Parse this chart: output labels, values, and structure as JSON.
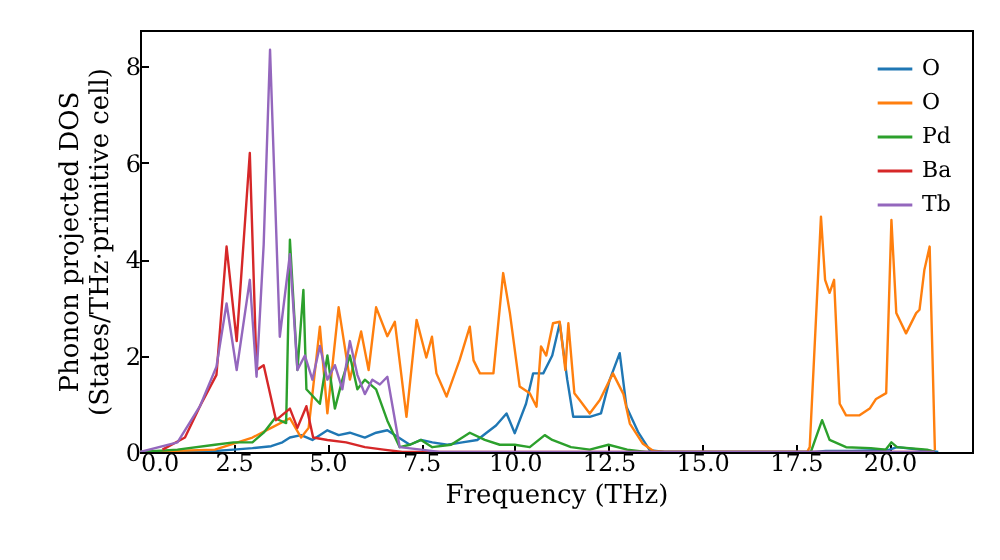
{
  "chart_data": {
    "type": "line",
    "xlabel": "Frequency (THz)",
    "ylabel": "Phonon projected DOS\n(States/THz·primitive cell)",
    "xlim": [
      0,
      22.2
    ],
    "ylim": [
      0,
      8.75
    ],
    "xticks": [
      {
        "value": 0,
        "label": "0.0"
      },
      {
        "value": 2.5,
        "label": "2.5"
      },
      {
        "value": 5,
        "label": "5.0"
      },
      {
        "value": 7.5,
        "label": "7.5"
      },
      {
        "value": 10,
        "label": "10.0"
      },
      {
        "value": 12.5,
        "label": "12.5"
      },
      {
        "value": 15,
        "label": "15.0"
      },
      {
        "value": 17.5,
        "label": "17.5"
      },
      {
        "value": 20,
        "label": "20.0"
      }
    ],
    "yticks": [
      0,
      2,
      4,
      6,
      8
    ],
    "legend": "top right",
    "marker": "none",
    "line_style": "solid",
    "series": [
      {
        "name": "O",
        "color": "#1f77b4",
        "x": [
          0,
          1,
          2,
          2.5,
          3,
          3.5,
          3.8,
          4.0,
          4.3,
          4.6,
          5.0,
          5.3,
          5.6,
          6.0,
          6.3,
          6.6,
          6.9,
          7.2,
          7.5,
          7.8,
          8.2,
          8.6,
          9.0,
          9.23,
          9.5,
          9.78,
          10.0,
          10.3,
          10.49,
          10.76,
          11.0,
          11.2,
          11.4,
          11.56,
          12.0,
          12.3,
          12.53,
          12.8,
          12.98,
          13.3,
          13.6,
          14,
          18,
          18.3,
          19,
          20,
          20.2,
          21,
          21.3
        ],
        "values": [
          0,
          0,
          0.02,
          0.05,
          0.08,
          0.12,
          0.2,
          0.3,
          0.35,
          0.25,
          0.45,
          0.35,
          0.4,
          0.3,
          0.4,
          0.45,
          0.3,
          0.15,
          0.25,
          0.2,
          0.15,
          0.2,
          0.25,
          0.39,
          0.55,
          0.8,
          0.39,
          1.0,
          1.63,
          1.63,
          2.0,
          2.67,
          1.5,
          0.73,
          0.73,
          0.8,
          1.49,
          2.05,
          0.94,
          0.4,
          0.04,
          0,
          0,
          0.02,
          0.02,
          0.05,
          0.1,
          0.03,
          0
        ]
      },
      {
        "name": "O",
        "color": "#ff7f0e",
        "x": [
          0,
          2,
          3,
          3.5,
          4.0,
          4.3,
          4.5,
          4.8,
          5.0,
          5.3,
          5.6,
          5.9,
          6.1,
          6.3,
          6.6,
          6.8,
          7.11,
          7.38,
          7.64,
          7.79,
          7.91,
          8.18,
          8.53,
          8.8,
          8.9,
          9.07,
          9.43,
          9.69,
          9.87,
          10.13,
          10.4,
          10.58,
          10.7,
          10.84,
          11.02,
          11.2,
          11.35,
          11.43,
          11.59,
          11.73,
          12.0,
          12.27,
          12.62,
          12.9,
          13.07,
          13.42,
          13.7,
          14,
          17.8,
          17.87,
          18.17,
          18.28,
          18.4,
          18.52,
          18.67,
          18.84,
          19.2,
          19.47,
          19.64,
          19.91,
          20.05,
          20.18,
          20.44,
          20.71,
          20.8,
          20.93,
          21.07,
          21.21
        ],
        "values": [
          0,
          0.05,
          0.3,
          0.5,
          0.7,
          0.3,
          0.5,
          2.6,
          0.8,
          3.0,
          1.5,
          2.5,
          1.7,
          3.0,
          2.4,
          2.7,
          0.73,
          2.74,
          1.96,
          2.39,
          1.63,
          1.15,
          1.91,
          2.6,
          1.9,
          1.63,
          1.63,
          3.71,
          2.88,
          1.36,
          1.22,
          0.94,
          2.19,
          2.0,
          2.67,
          2.7,
          1.7,
          2.67,
          1.22,
          1.08,
          0.8,
          1.08,
          1.63,
          1.2,
          0.59,
          0.17,
          0.02,
          0,
          0,
          0.1,
          4.88,
          3.57,
          3.3,
          3.57,
          1.0,
          0.76,
          0.76,
          0.9,
          1.1,
          1.22,
          4.81,
          2.88,
          2.46,
          2.88,
          2.95,
          3.78,
          4.26,
          0.04
        ]
      },
      {
        "name": "Pd",
        "color": "#2ca02c",
        "x": [
          0,
          1,
          2,
          2.5,
          3,
          3.3,
          3.6,
          3.9,
          4.0,
          4.2,
          4.36,
          4.44,
          4.8,
          5.0,
          5.2,
          5.4,
          5.6,
          5.8,
          6.0,
          6.3,
          6.6,
          6.93,
          7.2,
          7.5,
          7.8,
          8.3,
          8.8,
          9.2,
          9.6,
          10.0,
          10.4,
          10.8,
          11.0,
          11.5,
          12.0,
          12.5,
          13.0,
          13.5,
          17.9,
          18.2,
          18.4,
          18.84,
          19.5,
          19.9,
          20.05,
          20.2,
          21.0,
          21.2
        ],
        "values": [
          0,
          0.05,
          0.15,
          0.2,
          0.2,
          0.4,
          0.7,
          0.6,
          4.4,
          1.7,
          3.36,
          1.3,
          1.0,
          2.0,
          0.9,
          1.5,
          2.0,
          1.3,
          1.5,
          1.3,
          0.65,
          0.1,
          0.15,
          0.25,
          0.1,
          0.15,
          0.4,
          0.25,
          0.15,
          0.15,
          0.1,
          0.35,
          0.25,
          0.1,
          0.05,
          0.15,
          0.05,
          0,
          0,
          0.66,
          0.25,
          0.1,
          0.08,
          0.05,
          0.2,
          0.1,
          0.05,
          0
        ]
      },
      {
        "name": "Ba",
        "color": "#d62728",
        "x": [
          0.6,
          1.2,
          1.6,
          2.04,
          2.31,
          2.58,
          2.93,
          3.11,
          3.3,
          3.63,
          4.0,
          4.2,
          4.44,
          4.62,
          5.0,
          5.5,
          6.0,
          6.5,
          7,
          8,
          12,
          21.2
        ],
        "values": [
          0.05,
          0.3,
          0.95,
          1.6,
          4.26,
          2.3,
          6.2,
          1.7,
          1.8,
          0.66,
          0.9,
          0.5,
          0.95,
          0.3,
          0.25,
          0.2,
          0.1,
          0.05,
          0,
          0,
          0,
          0
        ]
      },
      {
        "name": "Tb",
        "color": "#9467bd",
        "x": [
          0,
          1,
          1.6,
          2.04,
          2.31,
          2.58,
          2.93,
          3.11,
          3.3,
          3.47,
          3.73,
          4.0,
          4.2,
          4.4,
          4.6,
          4.8,
          5.0,
          5.2,
          5.4,
          5.6,
          5.8,
          6.0,
          6.2,
          6.4,
          6.6,
          6.93,
          7.5,
          8,
          12,
          21.2
        ],
        "values": [
          0,
          0.2,
          0.95,
          1.77,
          3.08,
          1.7,
          3.57,
          1.56,
          4.3,
          8.34,
          2.39,
          4.1,
          1.7,
          2.0,
          1.5,
          2.2,
          1.5,
          1.8,
          1.3,
          2.3,
          1.6,
          1.2,
          1.5,
          1.4,
          1.56,
          0.1,
          0.05,
          0,
          0,
          0
        ]
      }
    ]
  }
}
